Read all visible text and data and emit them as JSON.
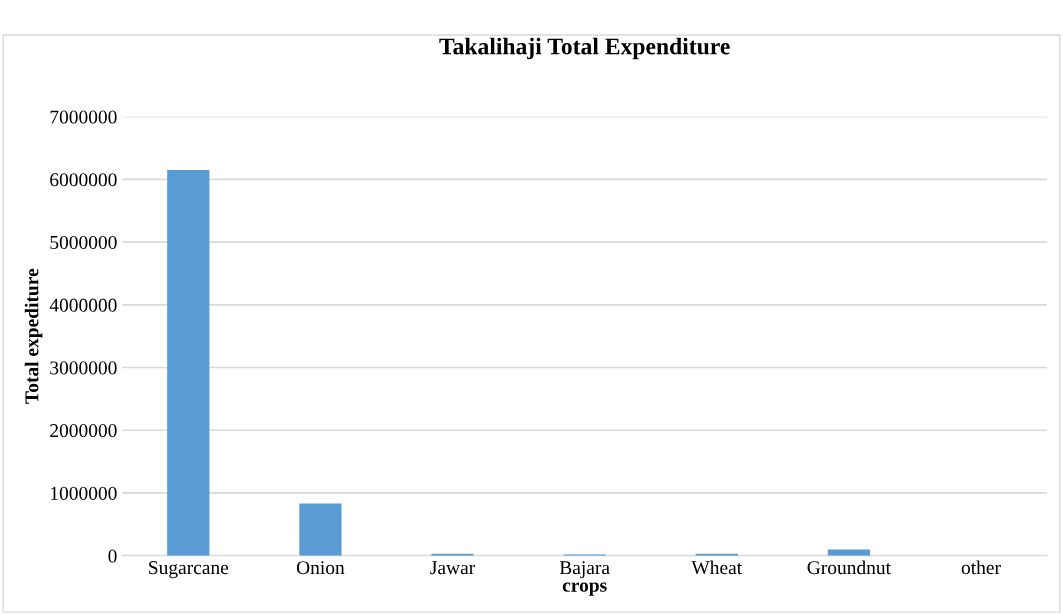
{
  "chart_data": {
    "type": "bar",
    "title": "Takalihaji Total Expenditure",
    "xlabel": "crops",
    "ylabel": "Total expediture",
    "categories": [
      "Sugarcane",
      "Onion",
      "Jawar",
      "Bajara",
      "Wheat",
      "Groundnut",
      "other"
    ],
    "values": [
      6150000,
      830000,
      30000,
      20000,
      30000,
      100000,
      null
    ],
    "color": "#5b9bd5",
    "ylim": [
      0,
      7000000
    ],
    "yticks": [
      0,
      1000000,
      2000000,
      3000000,
      4000000,
      5000000,
      6000000,
      7000000
    ],
    "grid": "y"
  }
}
